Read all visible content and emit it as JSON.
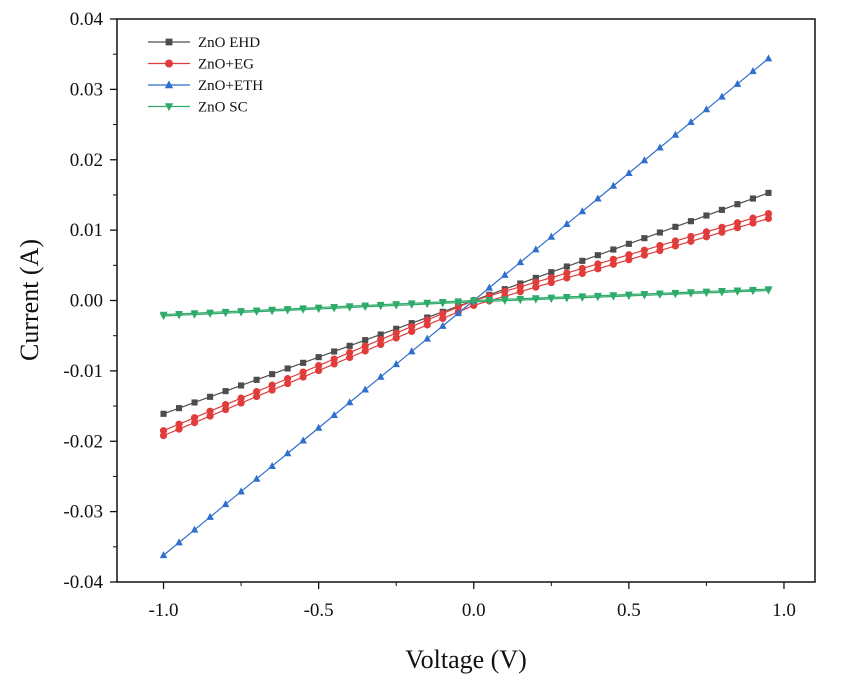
{
  "chart_data": {
    "type": "line",
    "title": "",
    "xlabel": "Voltage (V)",
    "ylabel": "Current (A)",
    "xlim": [
      -1.15,
      1.1
    ],
    "ylim": [
      -0.04,
      0.04
    ],
    "x_ticks": [
      -1.0,
      -0.5,
      0.0,
      0.5,
      1.0
    ],
    "x_tick_labels": [
      "-1.0",
      "-0.5",
      "0.0",
      "0.5",
      "1.0"
    ],
    "y_ticks": [
      -0.04,
      -0.03,
      -0.02,
      -0.01,
      0.0,
      0.01,
      0.02,
      0.03,
      0.04
    ],
    "y_tick_labels": [
      "-0.04",
      "-0.03",
      "-0.02",
      "-0.01",
      "0.00",
      "0.01",
      "0.02",
      "0.03",
      "0.04"
    ],
    "grid": false,
    "legend_position": "top-left",
    "x_start": -1.0,
    "x_step": 0.05,
    "x_end": 0.95,
    "series": [
      {
        "name": "ZnO EHD",
        "color": "#4d4d4d",
        "marker": "square",
        "slope_neg": 0.0161,
        "slope_pos": 0.0161,
        "hysteresis": 0.0
      },
      {
        "name": "ZnO+EG",
        "color": "#e03c3c",
        "marker": "circle",
        "slope_neg": 0.0185,
        "slope_pos": 0.013,
        "hysteresis": 0.0007
      },
      {
        "name": "ZnO+ETH",
        "color": "#2f6fcd",
        "marker": "triangle-up",
        "slope_neg": 0.0362,
        "slope_pos": 0.0362,
        "hysteresis": 0.0
      },
      {
        "name": "ZnO SC",
        "color": "#2eaa6a",
        "marker": "triangle-down",
        "slope_neg": 0.002,
        "slope_pos": 0.0017,
        "hysteresis": 0.0002
      }
    ]
  }
}
